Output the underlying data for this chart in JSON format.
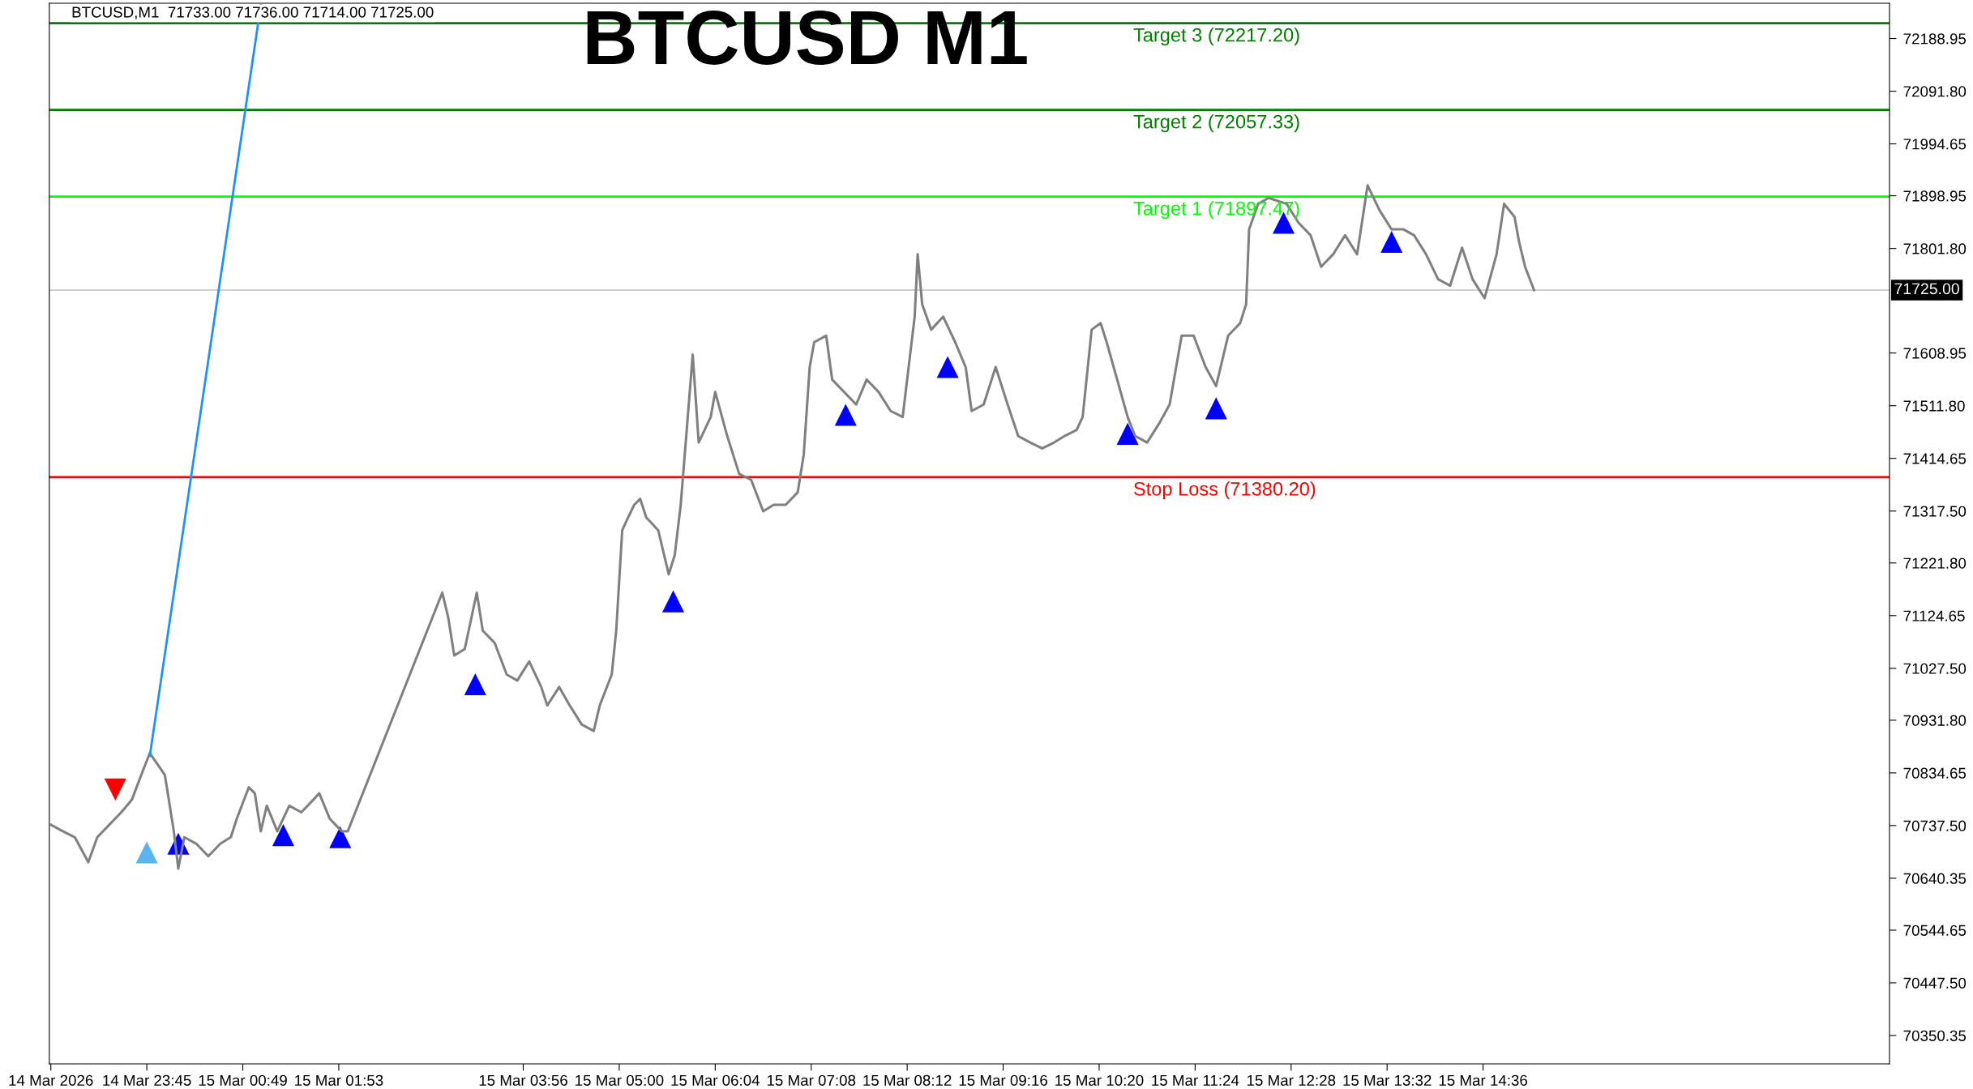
{
  "chart_data": {
    "type": "line",
    "title": "BTCUSD M1",
    "annotations": [
      "BTCUSD,M1  71733.00 71736.00 71714.00 71725.00"
    ],
    "xlim": [
      "2026-03-14T22:40",
      "2026-03-15T19:07"
    ],
    "ylim": [
      70298,
      72254
    ],
    "xticks": [
      {
        "value": "2026-03-14T22:41",
        "label": "14 Mar 2026"
      },
      {
        "value": "2026-03-14T23:45",
        "label": "14 Mar 23:45"
      },
      {
        "value": "2026-03-15T00:49",
        "label": "15 Mar 00:49"
      },
      {
        "value": "2026-03-15T01:53",
        "label": "15 Mar 01:53"
      },
      {
        "value": "2026-03-15T03:56",
        "label": "15 Mar 03:56"
      },
      {
        "value": "2026-03-15T05:00",
        "label": "15 Mar 05:00"
      },
      {
        "value": "2026-03-15T06:04",
        "label": "15 Mar 06:04"
      },
      {
        "value": "2026-03-15T07:08",
        "label": "15 Mar 07:08"
      },
      {
        "value": "2026-03-15T08:12",
        "label": "15 Mar 08:12"
      },
      {
        "value": "2026-03-15T09:16",
        "label": "15 Mar 09:16"
      },
      {
        "value": "2026-03-15T10:20",
        "label": "15 Mar 10:20"
      },
      {
        "value": "2026-03-15T11:24",
        "label": "15 Mar 11:24"
      },
      {
        "value": "2026-03-15T12:28",
        "label": "15 Mar 12:28"
      },
      {
        "value": "2026-03-15T13:32",
        "label": "15 Mar 13:32"
      },
      {
        "value": "2026-03-15T14:36",
        "label": "15 Mar 14:36"
      }
    ],
    "yticks": [
      {
        "value": 72188.95,
        "label": "72188.95"
      },
      {
        "value": 72091.8,
        "label": "72091.80"
      },
      {
        "value": 71994.65,
        "label": "71994.65"
      },
      {
        "value": 71898.95,
        "label": "71898.95"
      },
      {
        "value": 71801.8,
        "label": "71801.80"
      },
      {
        "value": 71608.95,
        "label": "71608.95"
      },
      {
        "value": 71511.8,
        "label": "71511.80"
      },
      {
        "value": 71414.65,
        "label": "71414.65"
      },
      {
        "value": 71317.5,
        "label": "71317.50"
      },
      {
        "value": 71221.8,
        "label": "71221.80"
      },
      {
        "value": 71124.65,
        "label": "71124.65"
      },
      {
        "value": 71027.5,
        "label": "71027.50"
      },
      {
        "value": 70931.8,
        "label": "70931.80"
      },
      {
        "value": 70834.65,
        "label": "70834.65"
      },
      {
        "value": 70737.5,
        "label": "70737.50"
      },
      {
        "value": 70640.35,
        "label": "70640.35"
      },
      {
        "value": 70544.65,
        "label": "70544.65"
      },
      {
        "value": 70447.5,
        "label": "70447.50"
      },
      {
        "value": 70350.35,
        "label": "70350.35"
      }
    ],
    "grid": false,
    "legend": false,
    "series": [
      {
        "color": "#808080",
        "x": [
          "2026-03-14T22:41",
          "2026-03-14T22:49",
          "2026-03-14T22:57",
          "2026-03-14T23:06",
          "2026-03-14T23:12",
          "2026-03-14T23:20",
          "2026-03-14T23:28",
          "2026-03-14T23:35",
          "2026-03-14T23:43",
          "2026-03-14T23:47",
          "2026-03-14T23:51",
          "2026-03-14T23:57",
          "2026-03-14T23:59",
          "2026-03-15T00:03",
          "2026-03-15T00:06",
          "2026-03-15T00:10",
          "2026-03-15T00:18",
          "2026-03-15T00:26",
          "2026-03-15T00:34",
          "2026-03-15T00:41",
          "2026-03-15T00:45",
          "2026-03-15T00:53",
          "2026-03-15T00:57",
          "2026-03-15T01:01",
          "2026-03-15T01:05",
          "2026-03-15T01:12",
          "2026-03-15T01:20",
          "2026-03-15T01:28",
          "2026-03-15T01:36",
          "2026-03-15T01:40",
          "2026-03-15T01:47",
          "2026-03-15T01:55",
          "2026-03-15T01:59",
          "2026-03-15T03:02",
          "2026-03-15T03:06",
          "2026-03-15T03:10",
          "2026-03-15T03:17",
          "2026-03-15T03:25",
          "2026-03-15T03:29",
          "2026-03-15T03:37",
          "2026-03-15T03:45",
          "2026-03-15T03:52",
          "2026-03-15T04:00",
          "2026-03-15T04:08",
          "2026-03-15T04:12",
          "2026-03-15T04:20",
          "2026-03-15T04:27",
          "2026-03-15T04:35",
          "2026-03-15T04:43",
          "2026-03-15T04:47",
          "2026-03-15T04:55",
          "2026-03-15T04:58",
          "2026-03-15T05:02",
          "2026-03-15T05:06",
          "2026-03-15T05:10",
          "2026-03-15T05:14",
          "2026-03-15T05:18",
          "2026-03-15T05:26",
          "2026-03-15T05:33",
          "2026-03-15T05:37",
          "2026-03-15T05:41",
          "2026-03-15T05:45",
          "2026-03-15T05:49",
          "2026-03-15T05:53",
          "2026-03-15T06:01",
          "2026-03-15T06:04",
          "2026-03-15T06:12",
          "2026-03-15T06:20",
          "2026-03-15T06:28",
          "2026-03-15T06:36",
          "2026-03-15T06:43",
          "2026-03-15T06:51",
          "2026-03-15T06:59",
          "2026-03-15T07:03",
          "2026-03-15T07:07",
          "2026-03-15T07:10",
          "2026-03-15T07:18",
          "2026-03-15T07:22",
          "2026-03-15T07:30",
          "2026-03-15T07:38",
          "2026-03-15T07:45",
          "2026-03-15T07:53",
          "2026-03-15T08:01",
          "2026-03-15T08:09",
          "2026-03-15T08:17",
          "2026-03-15T08:19",
          "2026-03-15T08:22",
          "2026-03-15T08:28",
          "2026-03-15T08:36",
          "2026-03-15T08:44",
          "2026-03-15T08:51",
          "2026-03-15T08:55",
          "2026-03-15T09:03",
          "2026-03-15T09:11",
          "2026-03-15T09:19",
          "2026-03-15T09:26",
          "2026-03-15T09:34",
          "2026-03-15T09:42",
          "2026-03-15T09:50",
          "2026-03-15T09:57",
          "2026-03-15T10:05",
          "2026-03-15T10:09",
          "2026-03-15T10:15",
          "2026-03-15T10:21",
          "2026-03-15T10:25",
          "2026-03-15T10:32",
          "2026-03-15T10:39",
          "2026-03-15T10:44",
          "2026-03-15T10:52",
          "2026-03-15T11:00",
          "2026-03-15T11:07",
          "2026-03-15T11:15",
          "2026-03-15T11:23",
          "2026-03-15T11:31",
          "2026-03-15T11:38",
          "2026-03-15T11:46",
          "2026-03-15T11:54",
          "2026-03-15T11:58",
          "2026-03-15T12:00",
          "2026-03-15T12:06",
          "2026-03-15T12:13",
          "2026-03-15T12:25",
          "2026-03-15T12:33",
          "2026-03-15T12:41",
          "2026-03-15T12:48",
          "2026-03-15T12:56",
          "2026-03-15T13:04",
          "2026-03-15T13:12",
          "2026-03-15T13:19",
          "2026-03-15T13:27",
          "2026-03-15T13:35",
          "2026-03-15T13:43",
          "2026-03-15T13:50",
          "2026-03-15T13:58",
          "2026-03-15T14:06",
          "2026-03-15T14:14",
          "2026-03-15T14:22",
          "2026-03-15T14:29",
          "2026-03-15T14:37",
          "2026-03-15T14:45",
          "2026-03-15T14:50",
          "2026-03-15T14:57",
          "2026-03-15T15:00",
          "2026-03-15T15:04",
          "2026-03-15T15:10"
        ],
        "values": [
          70739,
          70727,
          70716,
          70670,
          70716,
          70739,
          70762,
          70785,
          70843,
          70871,
          70855,
          70831,
          70797,
          70727,
          70658,
          70716,
          70704,
          70681,
          70704,
          70716,
          70750,
          70808,
          70797,
          70727,
          70774,
          70727,
          70774,
          70762,
          70785,
          70797,
          70750,
          70727,
          70727,
          71167,
          71121,
          71051,
          71063,
          71167,
          71097,
          71074,
          71016,
          71005,
          71040,
          70993,
          70959,
          70993,
          70959,
          70924,
          70912,
          70959,
          71016,
          71097,
          71282,
          71306,
          71329,
          71340,
          71306,
          71282,
          71201,
          71236,
          71329,
          71467,
          71606,
          71444,
          71491,
          71537,
          71456,
          71386,
          71375,
          71317,
          71329,
          71329,
          71352,
          71421,
          71583,
          71629,
          71641,
          71560,
          71537,
          71514,
          71560,
          71537,
          71502,
          71491,
          71676,
          71791,
          71699,
          71652,
          71676,
          71629,
          71583,
          71502,
          71514,
          71583,
          71514,
          71456,
          71444,
          71433,
          71444,
          71456,
          71467,
          71491,
          71652,
          71664,
          71629,
          71560,
          71491,
          71456,
          71444,
          71479,
          71514,
          71641,
          71641,
          71583,
          71548,
          71641,
          71664,
          71699,
          71837,
          71884,
          71895,
          71884,
          71849,
          71826,
          71768,
          71791,
          71826,
          71791,
          71918,
          71872,
          71837,
          71837,
          71826,
          71791,
          71745,
          71733,
          71803,
          71745,
          71710,
          71791,
          71884,
          71860,
          71814,
          71768,
          71725
        ]
      },
      {
        "color": "#1e90ff",
        "x": [
          "2026-03-14T23:47",
          "2026-03-15T01:01"
        ],
        "values": [
          70866,
          72250
        ]
      },
      {
        "type": "scatter",
        "marker": "triangle",
        "color": "#0000ff",
        "x": [
          "2026-03-15T00:06",
          "2026-03-15T01:16",
          "2026-03-15T01:54",
          "2026-03-15T03:24",
          "2026-03-15T05:36",
          "2026-03-15T07:31",
          "2026-03-15T08:39",
          "2026-03-15T10:39",
          "2026-03-15T11:38",
          "2026-03-15T12:23",
          "2026-03-15T13:35"
        ],
        "values": [
          70704,
          70720,
          70716,
          70998,
          71151,
          71495,
          71583,
          71460,
          71507,
          71849,
          71814
        ]
      },
      {
        "type": "scatter",
        "marker": "triangle_down",
        "color": "#ff0000",
        "x": [
          "2026-03-14T23:24"
        ],
        "values": [
          70804
        ]
      },
      {
        "type": "scatter",
        "marker": "triangle",
        "color": "#5ab4f0",
        "x": [
          "2026-03-14T23:45"
        ],
        "values": [
          70688
        ]
      }
    ],
    "ref_lines": [
      {
        "axis": "y",
        "value": 72217.2,
        "label": "Target 3 (72217.20)",
        "color": "#008000"
      },
      {
        "axis": "y",
        "value": 72057.33,
        "label": "Target 2 (72057.33)",
        "color": "#008000"
      },
      {
        "axis": "y",
        "value": 71897.47,
        "label": "Target 1 (71897.47)",
        "color": "#00ff00"
      },
      {
        "axis": "y",
        "value": 71380.2,
        "label": "Stop Loss (71380.20)",
        "color": "#ff0000"
      },
      {
        "axis": "y",
        "value": 71725.0,
        "label": "71725.00",
        "color": "#c0c0c0"
      }
    ]
  }
}
